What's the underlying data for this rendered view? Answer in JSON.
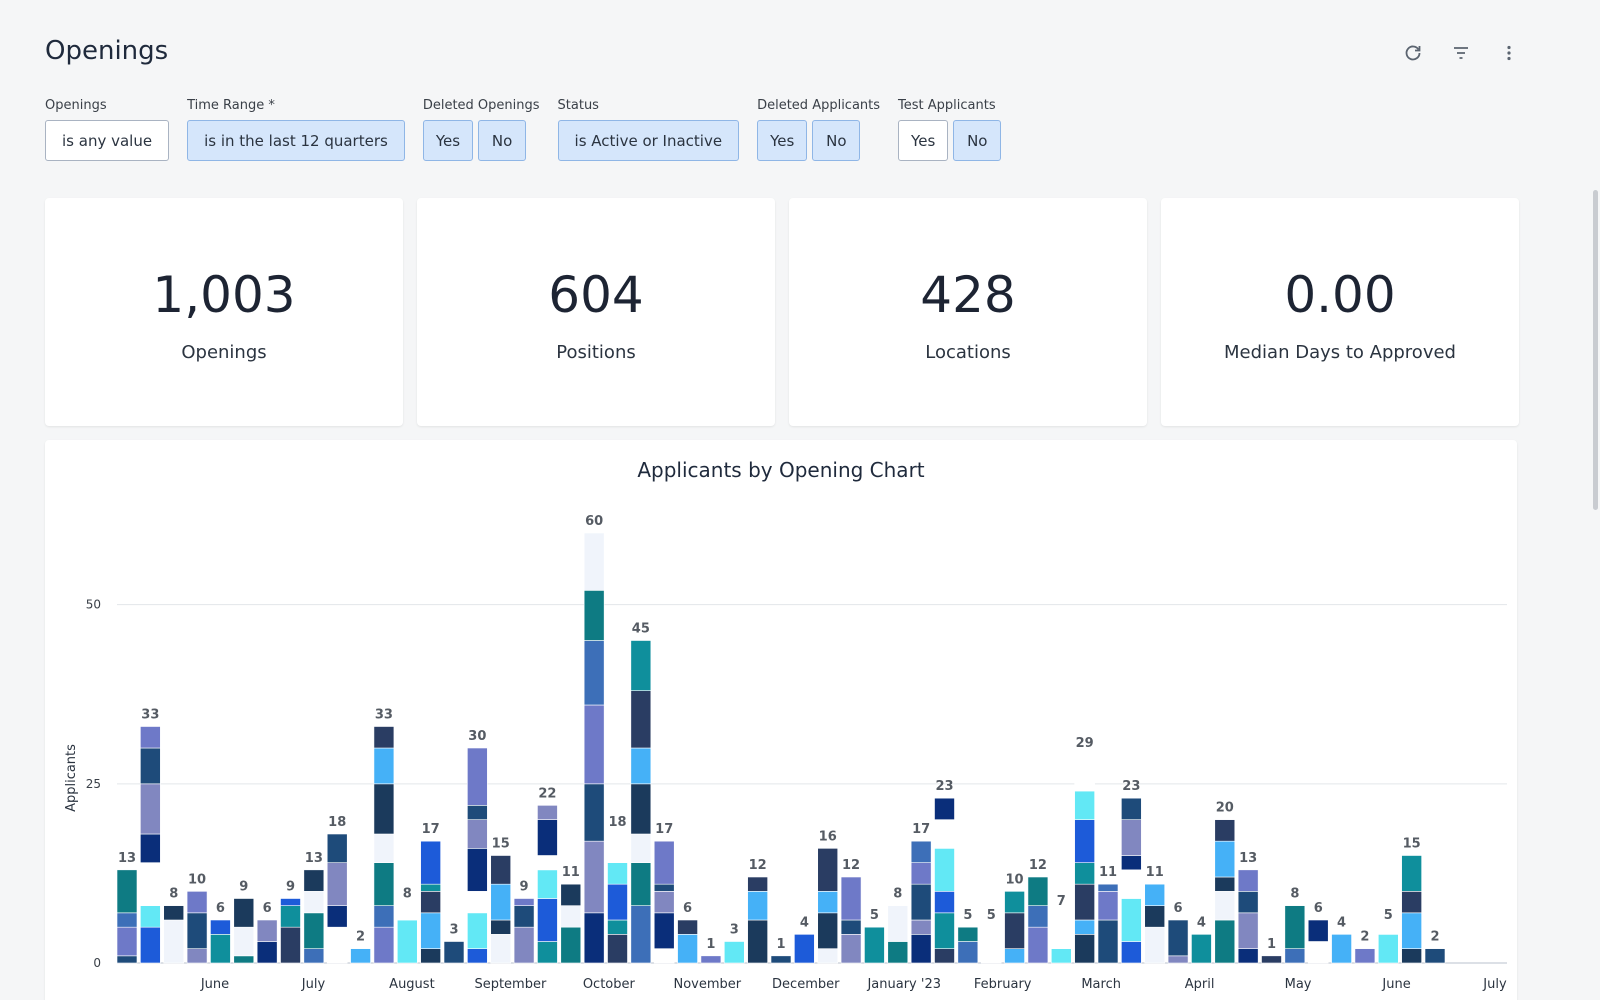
{
  "header": {
    "title": "Openings"
  },
  "actions": [
    {
      "icon": "refresh-icon"
    },
    {
      "icon": "filter-icon"
    },
    {
      "icon": "more-vertical-icon"
    }
  ],
  "filters": {
    "openings": {
      "label": "Openings",
      "value": "is any value"
    },
    "time_range": {
      "label": "Time Range *",
      "value": "is in the last 12 quarters"
    },
    "deleted_openings": {
      "label": "Deleted Openings",
      "yes": "Yes",
      "no": "No"
    },
    "status": {
      "label": "Status",
      "value": "is Active or Inactive"
    },
    "deleted_applicants": {
      "label": "Deleted Applicants",
      "yes": "Yes",
      "no": "No"
    },
    "test_applicants": {
      "label": "Test Applicants",
      "yes": "Yes",
      "no": "No"
    }
  },
  "kpis": [
    {
      "value": "1,003",
      "label": "Openings"
    },
    {
      "value": "604",
      "label": "Positions"
    },
    {
      "value": "428",
      "label": "Locations"
    },
    {
      "value": "0.00",
      "label": "Median Days to Approved"
    }
  ],
  "colors": {
    "palette": [
      "#1e4b7a",
      "#0e7b83",
      "#45b1f7",
      "#1d5bd9",
      "#0a2e7a",
      "#6e79c8",
      "#f0f4fb",
      "#2a3d63",
      "#62e8f5",
      "#8187c0",
      "#3d6fb8",
      "#1b3a5c",
      "#0f8f9c",
      "#ffffff"
    ]
  },
  "chart_data": {
    "type": "bar",
    "title": "Applicants by Opening Chart",
    "ylabel": "Applicants",
    "ylim": [
      0,
      60
    ],
    "yticks": [
      0,
      25,
      50
    ],
    "grid": true,
    "stacked": true,
    "month_labels": [
      "June",
      "July",
      "August",
      "September",
      "October",
      "November",
      "December",
      "January '23",
      "February",
      "March",
      "April",
      "May",
      "June",
      "July"
    ],
    "values": [
      13,
      33,
      8,
      10,
      6,
      9,
      6,
      9,
      13,
      18,
      2,
      33,
      8,
      17,
      3,
      30,
      15,
      9,
      22,
      11,
      60,
      18,
      45,
      17,
      6,
      1,
      3,
      12,
      1,
      4,
      16,
      12,
      5,
      8,
      17,
      23,
      5,
      5,
      10,
      12,
      7,
      29,
      11,
      23,
      11,
      6,
      4,
      20,
      13,
      1,
      8,
      6,
      4,
      2,
      5,
      15,
      2
    ]
  }
}
